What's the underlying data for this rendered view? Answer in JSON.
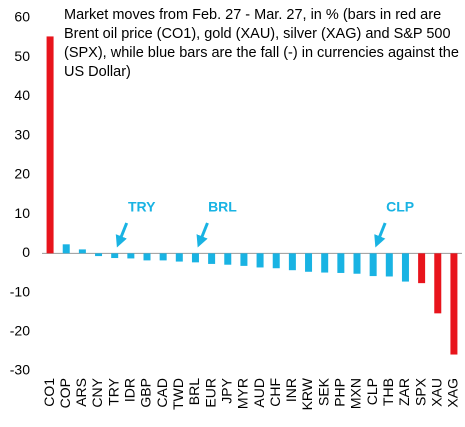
{
  "chart_data": {
    "type": "bar",
    "title": "Market moves from Feb. 27 - Mar. 27, in % (bars in red are Brent oil price (CO1), gold (XAU), silver (XAG) and S&P 500 (SPX), while blue bars are the fall (-) in currencies against the US Dollar)",
    "categories": [
      "CO1",
      "COP",
      "ARS",
      "CNY",
      "TRY",
      "IDR",
      "GBP",
      "CAD",
      "TWD",
      "BRL",
      "EUR",
      "JPY",
      "MYR",
      "AUD",
      "CHF",
      "INR",
      "KRW",
      "SEK",
      "PHP",
      "MXN",
      "CLP",
      "THB",
      "ZAR",
      "SPX",
      "XAU",
      "XAG"
    ],
    "values": [
      55.3,
      2.3,
      1.0,
      -0.7,
      -1.2,
      -1.3,
      -1.8,
      -1.8,
      -2.1,
      -2.3,
      -2.7,
      -2.9,
      -3.2,
      -3.6,
      -3.8,
      -4.3,
      -4.7,
      -4.9,
      -5.0,
      -5.2,
      -5.8,
      -5.9,
      -7.2,
      -7.6,
      -15.3,
      -25.8
    ],
    "colors": [
      "#e8141c",
      "#19b3e3",
      "#19b3e3",
      "#19b3e3",
      "#19b3e3",
      "#19b3e3",
      "#19b3e3",
      "#19b3e3",
      "#19b3e3",
      "#19b3e3",
      "#19b3e3",
      "#19b3e3",
      "#19b3e3",
      "#19b3e3",
      "#19b3e3",
      "#19b3e3",
      "#19b3e3",
      "#19b3e3",
      "#19b3e3",
      "#19b3e3",
      "#19b3e3",
      "#19b3e3",
      "#19b3e3",
      "#e8141c",
      "#e8141c",
      "#e8141c"
    ],
    "ylim": [
      -30,
      60
    ],
    "yticks": [
      -30,
      -20,
      -10,
      0,
      10,
      20,
      30,
      40,
      50,
      60
    ],
    "grid": false,
    "annotations": [
      {
        "text": "TRY"
      },
      {
        "text": "BRL"
      },
      {
        "text": "CLP"
      }
    ],
    "annotation_color": "#19b3e3"
  }
}
